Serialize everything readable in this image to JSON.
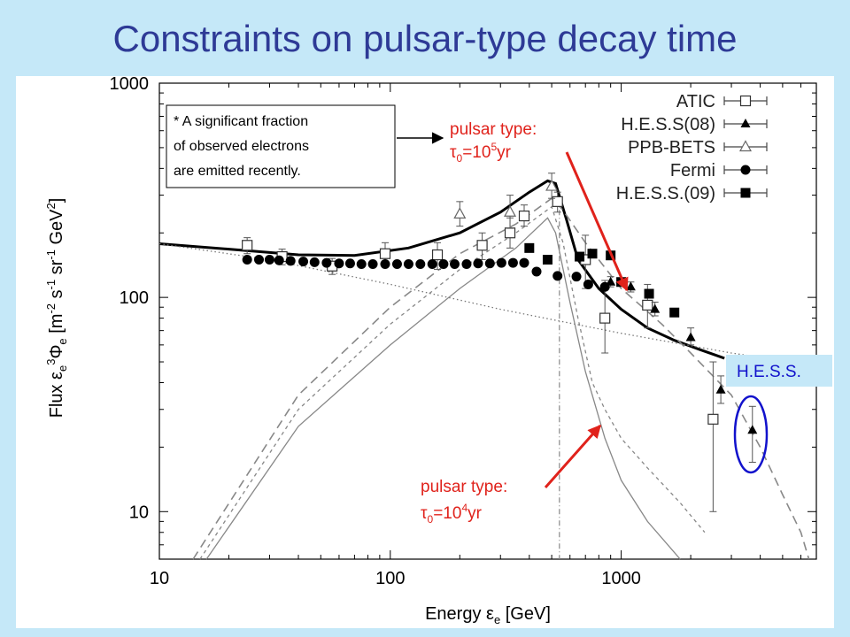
{
  "slide": {
    "title": "Constraints on pulsar-type decay time"
  },
  "annotations": {
    "note_box": [
      "* A significant fraction",
      "of observed electrons",
      "are emitted recently."
    ],
    "pulsar1_line1": "pulsar type:",
    "pulsar1_tau": "τ",
    "pulsar1_sub": "0",
    "pulsar1_eq": "=10",
    "pulsar1_sup": "5",
    "pulsar1_unit": "yr",
    "pulsar2_line1": "pulsar type:",
    "pulsar2_tau": "τ",
    "pulsar2_sub": "0",
    "pulsar2_eq": "=10",
    "pulsar2_sup": "4",
    "pulsar2_unit": "yr",
    "hess_label": "H.E.S.S."
  },
  "colors": {
    "title": "#2e3a96",
    "background": "#c5e8f8",
    "annotation_red": "#e0221b",
    "annotation_blue": "#1212cc",
    "hess_box": "#c5e8f8"
  },
  "chart_data": {
    "type": "scatter",
    "x_scale": "log",
    "y_scale": "log",
    "xlim": [
      10,
      7000
    ],
    "ylim": [
      6,
      1000
    ],
    "x_ticks": [
      10,
      100,
      1000
    ],
    "x_tick_labels": [
      "10",
      "100",
      "1000"
    ],
    "y_ticks": [
      10,
      100,
      1000
    ],
    "y_tick_labels": [
      "10",
      "100",
      "1000"
    ],
    "xlabel_parts": [
      "Energy ",
      "ε",
      "e",
      " [GeV]"
    ],
    "ylabel_parts": [
      "Flux ",
      "ε",
      "e",
      "3",
      "Φ",
      "e",
      " [m",
      "-2",
      " s",
      "-1",
      " sr",
      "-1",
      " GeV",
      "2",
      "]"
    ],
    "legend_position": "top-right",
    "legend": [
      {
        "label": "ATIC",
        "marker": "open-square"
      },
      {
        "label": "H.E.S.S(08)",
        "marker": "filled-triangle"
      },
      {
        "label": "PPB-BETS",
        "marker": "open-triangle"
      },
      {
        "label": "Fermi",
        "marker": "filled-circle"
      },
      {
        "label": "H.E.S.S.(09)",
        "marker": "filled-square"
      }
    ],
    "series": [
      {
        "name": "ATIC",
        "marker": "open-square",
        "points": [
          [
            24,
            175,
            160,
            190
          ],
          [
            34,
            155,
            142,
            168
          ],
          [
            56,
            140,
            128,
            152
          ],
          [
            95,
            160,
            140,
            180
          ],
          [
            160,
            158,
            135,
            180
          ],
          [
            250,
            175,
            150,
            200
          ],
          [
            330,
            200,
            170,
            235
          ],
          [
            380,
            240,
            215,
            270
          ],
          [
            530,
            280,
            250,
            310
          ],
          [
            700,
            150,
            110,
            195
          ],
          [
            850,
            80,
            55,
            120
          ],
          [
            1300,
            92,
            72,
            115
          ],
          [
            2500,
            27,
            10,
            50
          ]
        ]
      },
      {
        "name": "H.E.S.S(08)",
        "marker": "filled-triangle",
        "points": [
          [
            900,
            118,
            112,
            125
          ],
          [
            1100,
            112,
            106,
            118
          ],
          [
            1400,
            88,
            82,
            95
          ],
          [
            2000,
            65,
            60,
            72
          ],
          [
            2700,
            37,
            32,
            43
          ],
          [
            3700,
            24,
            17,
            31
          ]
        ]
      },
      {
        "name": "PPB-BETS",
        "marker": "open-triangle",
        "points": [
          [
            200,
            245,
            215,
            280
          ],
          [
            330,
            250,
            210,
            300
          ],
          [
            500,
            330,
            290,
            380
          ]
        ]
      },
      {
        "name": "Fermi",
        "marker": "filled-circle",
        "points": [
          [
            24,
            150
          ],
          [
            27,
            150
          ],
          [
            30,
            150
          ],
          [
            33,
            149
          ],
          [
            37,
            148
          ],
          [
            42,
            147
          ],
          [
            47,
            146
          ],
          [
            53,
            145
          ],
          [
            60,
            144
          ],
          [
            67,
            144
          ],
          [
            75,
            143
          ],
          [
            84,
            143
          ],
          [
            95,
            143
          ],
          [
            107,
            143
          ],
          [
            120,
            143
          ],
          [
            135,
            143
          ],
          [
            152,
            143
          ],
          [
            170,
            143
          ],
          [
            190,
            143
          ],
          [
            214,
            143
          ],
          [
            240,
            144
          ],
          [
            270,
            144
          ],
          [
            303,
            145
          ],
          [
            340,
            145
          ],
          [
            380,
            145
          ],
          [
            430,
            132
          ],
          [
            530,
            126
          ],
          [
            640,
            125
          ],
          [
            720,
            115
          ],
          [
            850,
            112
          ]
        ]
      },
      {
        "name": "H.E.S.S.(09)",
        "marker": "filled-square",
        "points": [
          [
            400,
            170
          ],
          [
            480,
            150
          ],
          [
            660,
            155
          ],
          [
            750,
            160
          ],
          [
            900,
            157
          ],
          [
            1000,
            118
          ],
          [
            1320,
            104
          ],
          [
            1700,
            85
          ]
        ]
      }
    ],
    "model_curves": [
      {
        "style": "thick-solid",
        "points": [
          [
            10,
            178
          ],
          [
            20,
            168
          ],
          [
            40,
            158
          ],
          [
            70,
            157
          ],
          [
            120,
            170
          ],
          [
            200,
            200
          ],
          [
            300,
            250
          ],
          [
            400,
            310
          ],
          [
            480,
            350
          ],
          [
            520,
            340
          ],
          [
            580,
            230
          ],
          [
            650,
            150
          ],
          [
            800,
            110
          ],
          [
            1000,
            88
          ],
          [
            1300,
            72
          ],
          [
            1700,
            63
          ],
          [
            2200,
            57
          ],
          [
            2800,
            52
          ]
        ]
      },
      {
        "style": "thin-dotted",
        "points": [
          [
            10,
            178
          ],
          [
            30,
            150
          ],
          [
            100,
            115
          ],
          [
            300,
            88
          ],
          [
            1000,
            68
          ],
          [
            3000,
            55
          ],
          [
            7000,
            48
          ]
        ]
      },
      {
        "style": "gray-solid",
        "points": [
          [
            16,
            6
          ],
          [
            40,
            25
          ],
          [
            100,
            60
          ],
          [
            200,
            110
          ],
          [
            350,
            170
          ],
          [
            480,
            235
          ],
          [
            520,
            200
          ],
          [
            600,
            95
          ],
          [
            700,
            45
          ],
          [
            850,
            22
          ],
          [
            1000,
            14
          ],
          [
            1300,
            9
          ],
          [
            1800,
            6
          ]
        ]
      },
      {
        "style": "gray-dashed",
        "points": [
          [
            15,
            6
          ],
          [
            40,
            30
          ],
          [
            100,
            75
          ],
          [
            200,
            135
          ],
          [
            350,
            200
          ],
          [
            500,
            265
          ],
          [
            560,
            180
          ],
          [
            650,
            80
          ],
          [
            750,
            40
          ],
          [
            850,
            30
          ],
          [
            1000,
            22
          ],
          [
            1300,
            16
          ],
          [
            1800,
            11
          ],
          [
            2300,
            8
          ]
        ]
      },
      {
        "style": "gray-long-dashed",
        "points": [
          [
            14,
            6
          ],
          [
            40,
            35
          ],
          [
            100,
            90
          ],
          [
            200,
            160
          ],
          [
            350,
            220
          ],
          [
            500,
            290
          ],
          [
            560,
            255
          ],
          [
            700,
            180
          ],
          [
            1000,
            110
          ],
          [
            1500,
            75
          ],
          [
            2000,
            55
          ],
          [
            3000,
            35
          ],
          [
            4000,
            20
          ],
          [
            5000,
            12
          ],
          [
            6000,
            8
          ],
          [
            6500,
            6
          ]
        ]
      },
      {
        "style": "gray-dash-dot-vertical",
        "points": [
          [
            540,
            290
          ],
          [
            540,
            6
          ]
        ]
      }
    ]
  }
}
